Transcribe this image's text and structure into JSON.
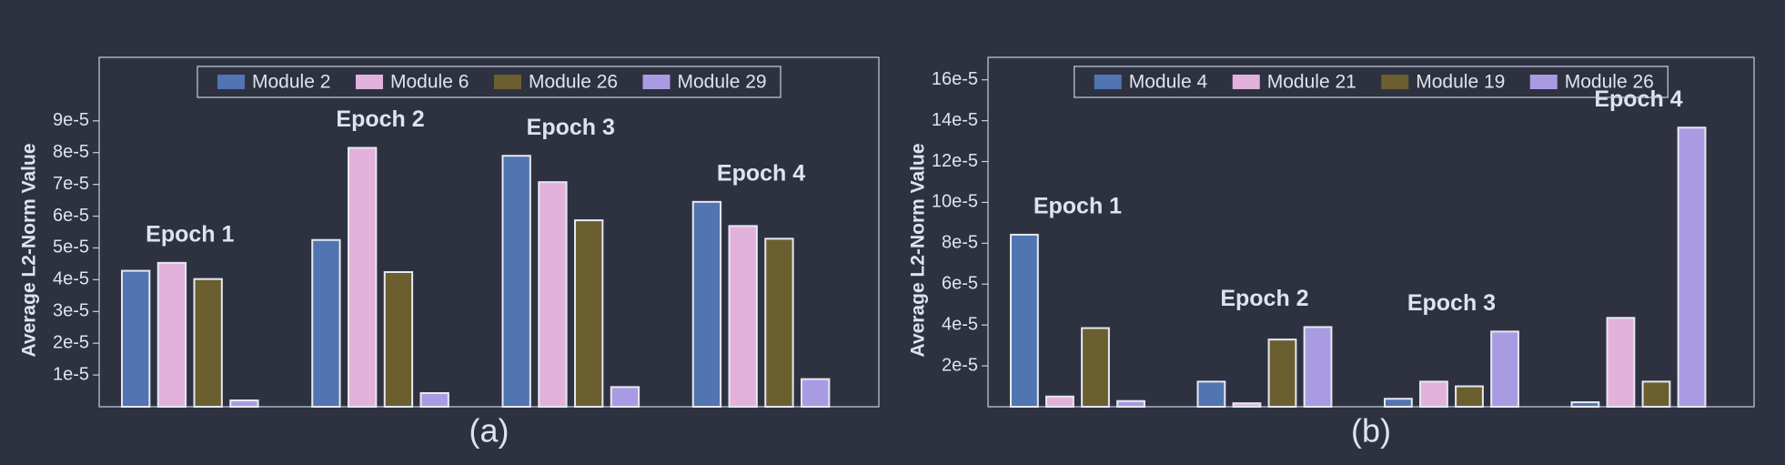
{
  "chart_data": [
    {
      "type": "bar",
      "caption": "(a)",
      "ylabel": "Average L2-Norm Value",
      "categories": [
        "Epoch 1",
        "Epoch 2",
        "Epoch 3",
        "Epoch 4"
      ],
      "series": [
        {
          "name": "Module 2",
          "color": "#5075b0",
          "values": [
            4.28e-05,
            5.25e-05,
            7.9e-05,
            6.45e-05
          ]
        },
        {
          "name": "Module 6",
          "color": "#e2b1dc",
          "values": [
            4.53e-05,
            8.15e-05,
            7.07e-05,
            5.69e-05
          ]
        },
        {
          "name": "Module 26",
          "color": "#6b5f30",
          "values": [
            4.02e-05,
            4.24e-05,
            5.87e-05,
            5.29e-05
          ]
        },
        {
          "name": "Module 29",
          "color": "#a99be2",
          "values": [
            2e-06,
            4.3e-06,
            6.2e-06,
            8.7e-06
          ]
        }
      ],
      "ylim": [
        0,
        0.00011
      ],
      "yticks": [
        {
          "value": 1e-05,
          "label": "1e-5"
        },
        {
          "value": 2e-05,
          "label": "2e-5"
        },
        {
          "value": 3e-05,
          "label": "3e-5"
        },
        {
          "value": 4e-05,
          "label": "4e-5"
        },
        {
          "value": 5e-05,
          "label": "5e-5"
        },
        {
          "value": 6e-05,
          "label": "6e-5"
        },
        {
          "value": 7e-05,
          "label": "7e-5"
        },
        {
          "value": 8e-05,
          "label": "8e-5"
        },
        {
          "value": 9e-05,
          "label": "9e-5"
        }
      ],
      "legend": "top",
      "grid": false
    },
    {
      "type": "bar",
      "caption": "(b)",
      "ylabel": "Average L2-Norm Value",
      "categories": [
        "Epoch 1",
        "Epoch 2",
        "Epoch 3",
        "Epoch 4"
      ],
      "series": [
        {
          "name": "Module 4",
          "color": "#5075b0",
          "values": [
            8.42e-05,
            1.23e-05,
            3.9e-06,
            2.2e-06
          ]
        },
        {
          "name": "Module 21",
          "color": "#e2b1dc",
          "values": [
            5e-06,
            1.7e-06,
            1.23e-05,
            4.35e-05
          ]
        },
        {
          "name": "Module 19",
          "color": "#6b5f30",
          "values": [
            3.85e-05,
            3.29e-05,
            1e-05,
            1.23e-05
          ]
        },
        {
          "name": "Module 26",
          "color": "#a99be2",
          "values": [
            2.8e-06,
            3.9e-05,
            3.68e-05,
            0.0001366
          ]
        }
      ],
      "ylim": [
        0,
        0.000171
      ],
      "yticks": [
        {
          "value": 2e-05,
          "label": "2e-5"
        },
        {
          "value": 4e-05,
          "label": "4e-5"
        },
        {
          "value": 6e-05,
          "label": "6e-5"
        },
        {
          "value": 8e-05,
          "label": "8e-5"
        },
        {
          "value": 0.0001,
          "label": "10e-5"
        },
        {
          "value": 0.00012,
          "label": "12e-5"
        },
        {
          "value": 0.00014,
          "label": "14e-5"
        },
        {
          "value": 0.00016,
          "label": "16e-5"
        }
      ],
      "legend": "top",
      "grid": false
    }
  ]
}
